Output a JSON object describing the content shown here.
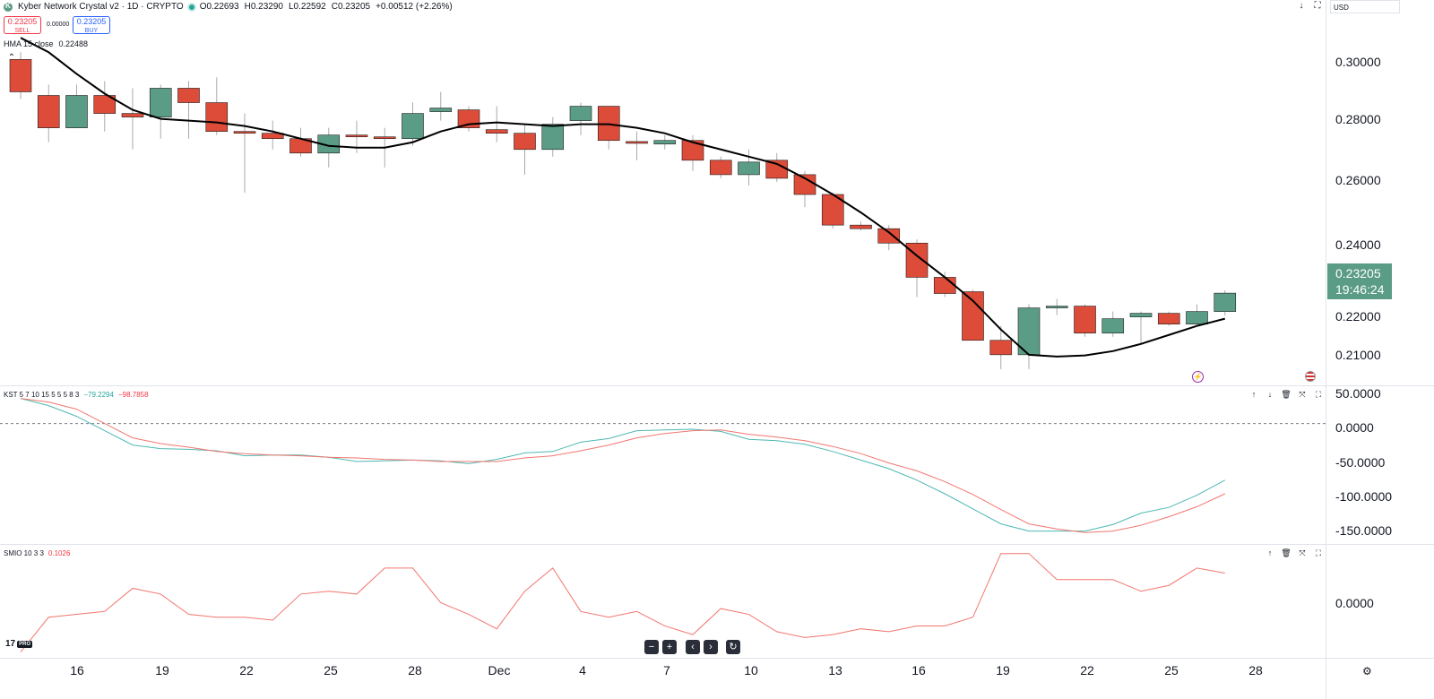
{
  "header": {
    "title": "Kyber Network Crystal v2 · 1D · CRYPTO",
    "open": "O0.22693",
    "high": "H0.23290",
    "low": "L0.22592",
    "close": "C0.23205",
    "change": "+0.00512 (+2.26%)",
    "sell_price": "0.23205",
    "sell_label": "SELL",
    "spread": "0.00000",
    "buy_price": "0.23205",
    "buy_label": "BUY",
    "hma_label": "HMA 15 close",
    "hma_value": "0.22488",
    "currency": "USD"
  },
  "price_tag": {
    "price": "0.23205",
    "countdown": "19:46:24"
  },
  "kst_legend": {
    "label": "KST 5 7 10 15 5 5 5 8 3",
    "kst": "−79.2294",
    "signal": "−98.7858"
  },
  "smio_legend": {
    "label": "SMIO 10 3 3",
    "value": "0.1026"
  },
  "colors": {
    "up": "#5b9c86",
    "down": "#dd4b39",
    "hma": "#000000",
    "kst": "#4fb8b2",
    "signal": "#f2766f",
    "smio": "#f2766f",
    "price_tag": "#5b9c86"
  },
  "chart_data": [
    {
      "type": "candlestick",
      "title": "Kyber Network Crystal v2 · 1D · CRYPTO",
      "x_labels": [
        "16",
        "19",
        "22",
        "25",
        "28",
        "Dec",
        "4",
        "7",
        "10",
        "13",
        "16",
        "19",
        "22",
        "25",
        "28"
      ],
      "y_ticks": [
        "0.30000",
        "0.28000",
        "0.26000",
        "0.24000",
        "0.22000",
        "0.21000"
      ],
      "ylim": [
        0.2065,
        0.3135
      ],
      "candles": [
        {
          "o": 0.297,
          "h": 0.299,
          "l": 0.286,
          "c": 0.288
        },
        {
          "o": 0.287,
          "h": 0.29,
          "l": 0.274,
          "c": 0.278
        },
        {
          "o": 0.278,
          "h": 0.29,
          "l": 0.278,
          "c": 0.287
        },
        {
          "o": 0.287,
          "h": 0.291,
          "l": 0.277,
          "c": 0.282
        },
        {
          "o": 0.282,
          "h": 0.289,
          "l": 0.272,
          "c": 0.281
        },
        {
          "o": 0.281,
          "h": 0.29,
          "l": 0.275,
          "c": 0.289
        },
        {
          "o": 0.289,
          "h": 0.291,
          "l": 0.275,
          "c": 0.285
        },
        {
          "o": 0.285,
          "h": 0.292,
          "l": 0.276,
          "c": 0.277
        },
        {
          "o": 0.277,
          "h": 0.282,
          "l": 0.26,
          "c": 0.2765
        },
        {
          "o": 0.2765,
          "h": 0.28,
          "l": 0.272,
          "c": 0.275
        },
        {
          "o": 0.275,
          "h": 0.278,
          "l": 0.27,
          "c": 0.271
        },
        {
          "o": 0.271,
          "h": 0.278,
          "l": 0.267,
          "c": 0.276
        },
        {
          "o": 0.276,
          "h": 0.28,
          "l": 0.271,
          "c": 0.2755
        },
        {
          "o": 0.2755,
          "h": 0.278,
          "l": 0.267,
          "c": 0.275
        },
        {
          "o": 0.275,
          "h": 0.285,
          "l": 0.273,
          "c": 0.282
        },
        {
          "o": 0.2825,
          "h": 0.288,
          "l": 0.28,
          "c": 0.2835
        },
        {
          "o": 0.283,
          "h": 0.284,
          "l": 0.277,
          "c": 0.278
        },
        {
          "o": 0.2775,
          "h": 0.284,
          "l": 0.274,
          "c": 0.2765
        },
        {
          "o": 0.2765,
          "h": 0.279,
          "l": 0.265,
          "c": 0.272
        },
        {
          "o": 0.272,
          "h": 0.281,
          "l": 0.27,
          "c": 0.279
        },
        {
          "o": 0.28,
          "h": 0.285,
          "l": 0.276,
          "c": 0.284
        },
        {
          "o": 0.284,
          "h": 0.284,
          "l": 0.272,
          "c": 0.2745
        },
        {
          "o": 0.2742,
          "h": 0.277,
          "l": 0.269,
          "c": 0.2738
        },
        {
          "o": 0.2735,
          "h": 0.276,
          "l": 0.272,
          "c": 0.2745
        },
        {
          "o": 0.2745,
          "h": 0.276,
          "l": 0.266,
          "c": 0.269
        },
        {
          "o": 0.269,
          "h": 0.27,
          "l": 0.264,
          "c": 0.265
        },
        {
          "o": 0.265,
          "h": 0.272,
          "l": 0.262,
          "c": 0.2685
        },
        {
          "o": 0.269,
          "h": 0.271,
          "l": 0.263,
          "c": 0.264
        },
        {
          "o": 0.265,
          "h": 0.266,
          "l": 0.256,
          "c": 0.2595
        },
        {
          "o": 0.2595,
          "h": 0.26,
          "l": 0.25,
          "c": 0.251
        },
        {
          "o": 0.251,
          "h": 0.252,
          "l": 0.2495,
          "c": 0.25
        },
        {
          "o": 0.25,
          "h": 0.251,
          "l": 0.244,
          "c": 0.246
        },
        {
          "o": 0.246,
          "h": 0.247,
          "l": 0.231,
          "c": 0.2365
        },
        {
          "o": 0.2365,
          "h": 0.238,
          "l": 0.231,
          "c": 0.232
        },
        {
          "o": 0.2325,
          "h": 0.233,
          "l": 0.219,
          "c": 0.219
        },
        {
          "o": 0.219,
          "h": 0.223,
          "l": 0.211,
          "c": 0.215
        },
        {
          "o": 0.215,
          "h": 0.229,
          "l": 0.211,
          "c": 0.228
        },
        {
          "o": 0.228,
          "h": 0.2305,
          "l": 0.226,
          "c": 0.2285
        },
        {
          "o": 0.2285,
          "h": 0.229,
          "l": 0.22,
          "c": 0.221
        },
        {
          "o": 0.221,
          "h": 0.227,
          "l": 0.22,
          "c": 0.225
        },
        {
          "o": 0.2255,
          "h": 0.227,
          "l": 0.218,
          "c": 0.2265
        },
        {
          "o": 0.2265,
          "h": 0.227,
          "l": 0.223,
          "c": 0.2235
        },
        {
          "o": 0.2235,
          "h": 0.229,
          "l": 0.223,
          "c": 0.227
        },
        {
          "o": 0.227,
          "h": 0.2329,
          "l": 0.2259,
          "c": 0.2321
        }
      ],
      "hma": [
        0.303,
        0.299,
        0.293,
        0.2875,
        0.283,
        0.2805,
        0.28,
        0.2795,
        0.2785,
        0.277,
        0.275,
        0.273,
        0.2725,
        0.2725,
        0.274,
        0.277,
        0.279,
        0.2795,
        0.279,
        0.2785,
        0.279,
        0.279,
        0.278,
        0.2765,
        0.274,
        0.272,
        0.27,
        0.268,
        0.264,
        0.2595,
        0.2545,
        0.249,
        0.2425,
        0.2365,
        0.23,
        0.222,
        0.215,
        0.2145,
        0.2148,
        0.216,
        0.218,
        0.2205,
        0.223,
        0.225
      ]
    },
    {
      "type": "line",
      "title": "KST 5 7 10 15 5 5 5 8 3",
      "y_ticks": [
        "50.0000",
        "0.0000",
        "-50.0000",
        "-100.0000",
        "-150.0000"
      ],
      "ylim": [
        -168,
        52
      ],
      "series": [
        {
          "name": "KST",
          "values": [
            35,
            25,
            10,
            -10,
            -30,
            -35,
            -36,
            -38,
            -45,
            -44,
            -44,
            -47,
            -53,
            -52,
            -51,
            -52,
            -56,
            -50,
            -41,
            -39,
            -26,
            -21,
            -10,
            -9,
            -8,
            -11,
            -22,
            -24,
            -29,
            -39,
            -51,
            -63,
            -79,
            -98,
            -119,
            -140,
            -150,
            -150,
            -150,
            -141,
            -125,
            -117,
            -100,
            -79
          ]
        },
        {
          "name": "Signal",
          "values": [
            35,
            30,
            20,
            0,
            -20,
            -28,
            -33,
            -39,
            -42,
            -44,
            -45,
            -47,
            -48,
            -50,
            -51,
            -53,
            -53,
            -53,
            -48,
            -45,
            -38,
            -30,
            -20,
            -14,
            -10,
            -9,
            -15,
            -19,
            -24,
            -32,
            -42,
            -55,
            -66,
            -81,
            -99,
            -120,
            -140,
            -147,
            -152,
            -150,
            -142,
            -130,
            -116,
            -98
          ]
        }
      ]
    },
    {
      "type": "line",
      "title": "SMIO 10 3 3",
      "y_ticks": [
        "0.0000"
      ],
      "ylim": [
        -0.19,
        0.2
      ],
      "series": [
        {
          "name": "SMIO",
          "values": [
            -0.17,
            -0.05,
            -0.04,
            -0.03,
            0.05,
            0.03,
            -0.04,
            -0.05,
            -0.05,
            -0.06,
            0.03,
            0.04,
            0.03,
            0.12,
            0.12,
            0.0,
            -0.04,
            -0.09,
            0.04,
            0.12,
            -0.03,
            -0.05,
            -0.03,
            -0.08,
            -0.11,
            -0.02,
            -0.04,
            -0.1,
            -0.12,
            -0.11,
            -0.09,
            -0.1,
            -0.08,
            -0.08,
            -0.05,
            0.17,
            0.17,
            0.08,
            0.08,
            0.08,
            0.04,
            0.06,
            0.12,
            0.1026
          ]
        }
      ]
    }
  ]
}
